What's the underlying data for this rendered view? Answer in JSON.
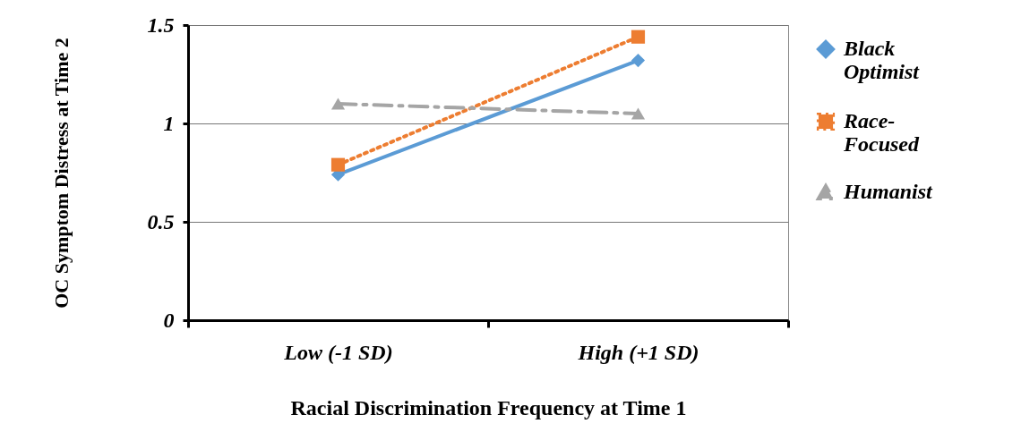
{
  "chart_data": {
    "type": "line",
    "xlabel": "Racial Discrimination Frequency at Time 1",
    "ylabel": "OC Symptom Distress at Time 2",
    "categories": [
      "Low (-1 SD)",
      "High (+1 SD)"
    ],
    "series": [
      {
        "name": "Black Optimist",
        "color": "#5b9bd5",
        "values": [
          0.74,
          1.32
        ],
        "marker": "diamond",
        "line_style": "solid"
      },
      {
        "name": "Race-Focused",
        "color": "#ed7d31",
        "values": [
          0.79,
          1.44
        ],
        "marker": "square",
        "line_style": "dotted"
      },
      {
        "name": "Humanist",
        "color": "#a5a5a5",
        "values": [
          1.1,
          1.05
        ],
        "marker": "triangle",
        "line_style": "dashed"
      }
    ],
    "ylim": [
      0,
      1.5
    ],
    "yticks": [
      0,
      0.5,
      1,
      1.5
    ],
    "grid": "y",
    "legend": "right"
  }
}
